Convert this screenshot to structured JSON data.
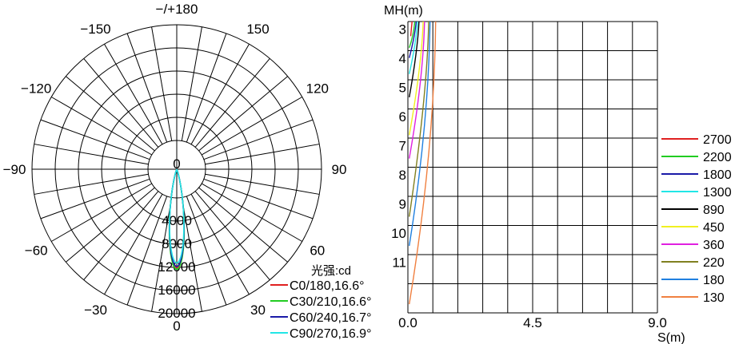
{
  "chart_data": [
    {
      "type": "polar",
      "title": "",
      "angle_labels": [
        {
          "angle": 180,
          "text": "−/+180"
        },
        {
          "angle": -150,
          "text": "−150"
        },
        {
          "angle": 150,
          "text": "150"
        },
        {
          "angle": -120,
          "text": "−120"
        },
        {
          "angle": 120,
          "text": "120"
        },
        {
          "angle": -90,
          "text": "−90"
        },
        {
          "angle": 90,
          "text": "90"
        },
        {
          "angle": -60,
          "text": "−60"
        },
        {
          "angle": 60,
          "text": "60"
        },
        {
          "angle": -30,
          "text": "−30"
        },
        {
          "angle": 30,
          "text": "30"
        },
        {
          "angle": 0,
          "text": "0"
        }
      ],
      "radial_labels": [
        "0",
        "4000",
        "8000",
        "12000",
        "16000",
        "20000"
      ],
      "radial_max": 20000,
      "unit_label": "光强:cd",
      "series": [
        {
          "name": "C0/180,16.6°",
          "color": "#e02020",
          "peak": 17000,
          "half_width_deg": 8.3
        },
        {
          "name": "C30/210,16.6°",
          "color": "#22cc22",
          "peak": 17300,
          "half_width_deg": 8.3
        },
        {
          "name": "C60/240,16.7°",
          "color": "#1a1aa8",
          "peak": 16800,
          "half_width_deg": 8.35
        },
        {
          "name": "C90/270,16.9°",
          "color": "#22e6e6",
          "peak": 16200,
          "half_width_deg": 8.45
        }
      ]
    },
    {
      "type": "line",
      "title": "",
      "xlabel": "S(m)",
      "ylabel": "MH(m)",
      "x_ticks": [
        "0.0",
        "4.5",
        "9.0"
      ],
      "xlim": [
        0,
        9
      ],
      "ylim": [
        2.5,
        12.5
      ],
      "y_ticks": [
        "3",
        "4",
        "5",
        "6",
        "7",
        "8",
        "9",
        "10",
        "11"
      ],
      "series": [
        {
          "name": "2700",
          "color": "#e02020",
          "points": [
            [
              0.15,
              2.5
            ],
            [
              0.1,
              3.0
            ]
          ]
        },
        {
          "name": "2200",
          "color": "#22cc22",
          "points": [
            [
              0.25,
              2.5
            ],
            [
              0.2,
              3.0
            ],
            [
              0.05,
              3.4
            ]
          ]
        },
        {
          "name": "1800",
          "color": "#1a1aa8",
          "points": [
            [
              0.3,
              2.5
            ],
            [
              0.25,
              3.0
            ],
            [
              0.05,
              3.75
            ]
          ]
        },
        {
          "name": "1300",
          "color": "#22e6e6",
          "points": [
            [
              0.35,
              2.5
            ],
            [
              0.3,
              3.2
            ],
            [
              0.05,
              4.3
            ]
          ]
        },
        {
          "name": "890",
          "color": "#000000",
          "points": [
            [
              0.4,
              2.5
            ],
            [
              0.35,
              3.5
            ],
            [
              0.05,
              5.1
            ]
          ]
        },
        {
          "name": "450",
          "color": "#f0f020",
          "points": [
            [
              0.55,
              2.5
            ],
            [
              0.5,
              4.0
            ],
            [
              0.05,
              6.4
            ]
          ]
        },
        {
          "name": "360",
          "color": "#e020e0",
          "points": [
            [
              0.6,
              2.5
            ],
            [
              0.55,
              4.5
            ],
            [
              0.05,
              7.2
            ]
          ]
        },
        {
          "name": "220",
          "color": "#808020",
          "points": [
            [
              0.75,
              2.5
            ],
            [
              0.7,
              5.0
            ],
            [
              0.05,
              9.2
            ]
          ]
        },
        {
          "name": "180",
          "color": "#2080e0",
          "points": [
            [
              0.8,
              2.5
            ],
            [
              0.75,
              6.0
            ],
            [
              0.05,
              10.2
            ]
          ]
        },
        {
          "name": "130",
          "color": "#f08040",
          "points": [
            [
              1.0,
              2.5
            ],
            [
              0.95,
              7.0
            ],
            [
              0.05,
              12.2
            ]
          ]
        }
      ],
      "legend_position": "right"
    }
  ]
}
